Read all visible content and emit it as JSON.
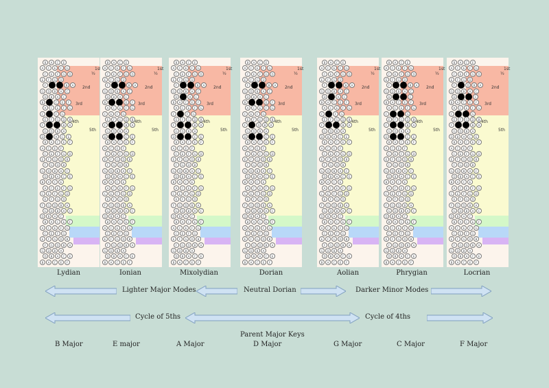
{
  "zones": {
    "first": "1st",
    "second": "2nd",
    "third": "3rd",
    "fourth": "4th",
    "fifth": "5th",
    "half": "½"
  },
  "modes": [
    {
      "label": "Lydian"
    },
    {
      "label": "Ionian"
    },
    {
      "label": "Mixolydian"
    },
    {
      "label": "Dorian"
    },
    {
      "label": "Aolian"
    },
    {
      "label": "Phrygian"
    },
    {
      "label": "Locrian"
    }
  ],
  "arrows_row1": {
    "lighter": "Lighter Major Modes",
    "neutral": "Neutral  Dorian",
    "darker": "Darker Minor Modes"
  },
  "arrows_row2": {
    "fifths": "Cycle of 5ths",
    "fourths": "Cycle of   4ths"
  },
  "parent_heading": "Parent Major Keys",
  "keys": [
    "B Major",
    "E major",
    "A Major",
    "D Major",
    "G Major",
    "C Major",
    "F Major"
  ],
  "colors": {
    "background": "#c8ddd5",
    "panel": "#fcf4ec",
    "zone1": "#f8b8a4",
    "zone2": "#fafad0",
    "zone3": "#d4f8c8",
    "zone4": "#b8d8f8",
    "zone5": "#d8b4f4",
    "arrow_fill": "#cfe2f3",
    "arrow_stroke": "#7f9fbf"
  },
  "button_glyphs": [
    "B",
    "A",
    "C",
    "E",
    "F",
    "G",
    "D"
  ]
}
